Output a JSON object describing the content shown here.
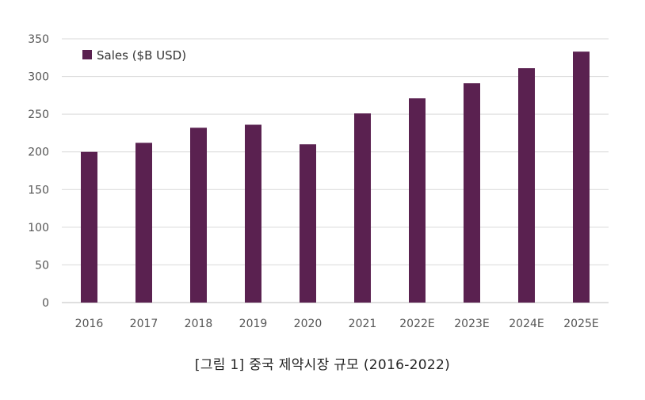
{
  "caption": "[그림 1] 중국 제약시장 규모 (2016-2022)",
  "chart_data": {
    "type": "bar",
    "title": "",
    "xlabel": "",
    "ylabel": "",
    "categories": [
      "2016",
      "2017",
      "2018",
      "2019",
      "2020",
      "2021",
      "2022E",
      "2023E",
      "2024E",
      "2025E"
    ],
    "series": [
      {
        "name": "Sales ($B USD)",
        "values": [
          200,
          212,
          232,
          236,
          210,
          251,
          271,
          291,
          311,
          333
        ]
      }
    ],
    "ylim": [
      0,
      350
    ],
    "yticks": [
      0,
      50,
      100,
      150,
      200,
      250,
      300,
      350
    ],
    "grid": true,
    "legend_position": "top-left",
    "bar_color": "#5a2150",
    "grid_color": "#d9d9d9",
    "axis_color": "#bfbfbf"
  }
}
